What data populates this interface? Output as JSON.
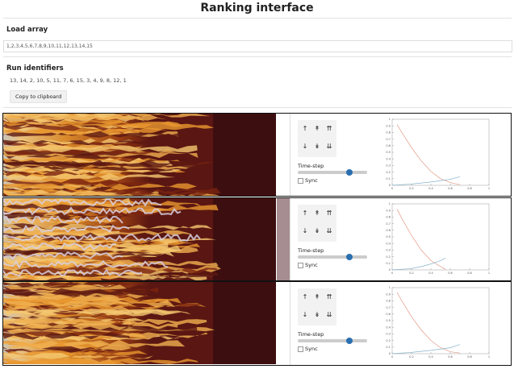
{
  "header": {
    "title": "Ranking interface"
  },
  "load": {
    "label": "Load array",
    "value": "1,2,3,4,5,6,7,8,9,10,11,12,13,14,15"
  },
  "run": {
    "label": "Run identifiers",
    "value": "13, 14, 2, 10, 5, 11, 7, 6, 15, 3, 4, 9, 8, 12, 1",
    "button": "Copy to clipboard"
  },
  "controls": {
    "up": [
      "↑",
      "↟",
      "⇈"
    ],
    "down": [
      "↓",
      "↡",
      "⇊"
    ],
    "timestep": "Time-step",
    "sync": "Sync"
  },
  "plots": [
    {
      "xlim": [
        0,
        1
      ],
      "ylim": [
        0,
        1
      ],
      "xticks": [
        0,
        0.2,
        0.4,
        0.6,
        0.8,
        1
      ],
      "yticks": [
        0,
        0.1,
        0.2,
        0.3,
        0.4,
        0.5,
        0.6,
        0.7,
        0.8,
        0.9,
        1
      ],
      "series": [
        {
          "color": "#e39a86",
          "x": [
            0.05,
            0.1,
            0.2,
            0.3,
            0.4,
            0.5,
            0.6,
            0.7
          ],
          "values": [
            0.92,
            0.8,
            0.57,
            0.37,
            0.21,
            0.1,
            0.04,
            0.01
          ]
        },
        {
          "color": "#88b3cc",
          "x": [
            0,
            0.2,
            0.4,
            0.6,
            0.7
          ],
          "values": [
            0,
            0.02,
            0.05,
            0.09,
            0.13
          ]
        }
      ]
    },
    {
      "xlim": [
        0,
        1
      ],
      "ylim": [
        0,
        1
      ],
      "xticks": [
        0,
        0.2,
        0.4,
        0.6,
        0.8,
        1
      ],
      "yticks": [
        0,
        0.1,
        0.2,
        0.3,
        0.4,
        0.5,
        0.6,
        0.7,
        0.8,
        0.9,
        1
      ],
      "series": [
        {
          "color": "#e39a86",
          "x": [
            0.05,
            0.1,
            0.2,
            0.3,
            0.4,
            0.5,
            0.55
          ],
          "values": [
            0.92,
            0.78,
            0.52,
            0.3,
            0.14,
            0.05,
            0.01
          ]
        },
        {
          "color": "#88b3cc",
          "x": [
            0,
            0.2,
            0.3,
            0.4,
            0.5,
            0.55
          ],
          "values": [
            0,
            0.02,
            0.05,
            0.09,
            0.14,
            0.18
          ]
        }
      ]
    },
    {
      "xlim": [
        0,
        1
      ],
      "ylim": [
        0,
        1
      ],
      "xticks": [
        0,
        0.2,
        0.4,
        0.6,
        0.8,
        1
      ],
      "yticks": [
        0,
        0.1,
        0.2,
        0.3,
        0.4,
        0.5,
        0.6,
        0.7,
        0.8,
        0.9,
        1
      ],
      "series": [
        {
          "color": "#e39a86",
          "x": [
            0.05,
            0.1,
            0.2,
            0.3,
            0.4,
            0.5,
            0.6,
            0.7
          ],
          "values": [
            0.93,
            0.8,
            0.56,
            0.36,
            0.2,
            0.09,
            0.03,
            0.01
          ]
        },
        {
          "color": "#88b3cc",
          "x": [
            0,
            0.2,
            0.4,
            0.6,
            0.7
          ],
          "values": [
            0,
            0.02,
            0.05,
            0.09,
            0.14
          ]
        }
      ]
    }
  ]
}
